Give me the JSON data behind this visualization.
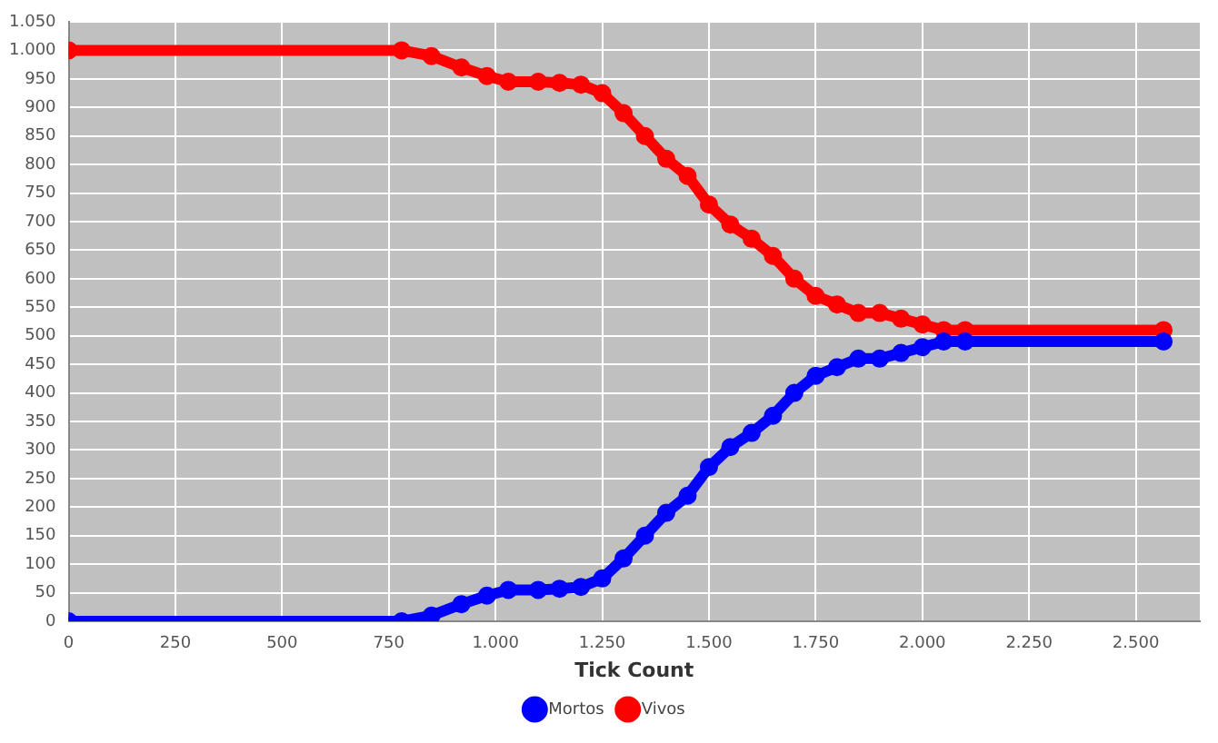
{
  "chart_data": {
    "type": "line",
    "xlabel": "Tick Count",
    "xlim": [
      0,
      2650
    ],
    "xticks": [
      0,
      250,
      500,
      {
        "value": 750,
        "label": "750"
      },
      {
        "value": 1000,
        "label": "1.000"
      },
      {
        "value": 1250,
        "label": "1.250"
      },
      {
        "value": 1500,
        "label": "1.500"
      },
      {
        "value": 1750,
        "label": "1.750"
      },
      {
        "value": 2000,
        "label": "2.000"
      },
      {
        "value": 2250,
        "label": "2.250"
      },
      {
        "value": 2500,
        "label": "2.500"
      }
    ],
    "ylim": [
      0,
      1050
    ],
    "yticks": [
      0,
      50,
      100,
      150,
      200,
      250,
      300,
      350,
      400,
      450,
      500,
      550,
      600,
      650,
      700,
      750,
      800,
      850,
      900,
      950,
      {
        "value": 1000,
        "label": "1.000"
      },
      {
        "value": 1050,
        "label": "1.050"
      }
    ],
    "x": [
      0,
      780,
      850,
      920,
      980,
      1030,
      1100,
      1150,
      1200,
      1250,
      1300,
      1350,
      1400,
      1450,
      1500,
      1550,
      1600,
      1650,
      1700,
      1750,
      1800,
      1850,
      1900,
      1950,
      2000,
      2050,
      2100,
      2565
    ],
    "series": [
      {
        "name": "Mortos",
        "color": "#0000ff",
        "values": [
          0,
          0,
          10,
          30,
          45,
          55,
          55,
          57,
          60,
          75,
          110,
          150,
          190,
          220,
          270,
          305,
          330,
          360,
          400,
          430,
          445,
          460,
          460,
          470,
          480,
          490,
          490,
          490
        ]
      },
      {
        "name": "Vivos",
        "color": "#ff0000",
        "values": [
          1000,
          1000,
          990,
          970,
          955,
          945,
          945,
          943,
          940,
          925,
          890,
          850,
          810,
          780,
          730,
          695,
          670,
          640,
          600,
          570,
          555,
          540,
          540,
          530,
          520,
          510,
          510,
          510
        ]
      }
    ],
    "grid": true,
    "legend": "bottom",
    "marker": "circle",
    "line_style": "solid"
  }
}
